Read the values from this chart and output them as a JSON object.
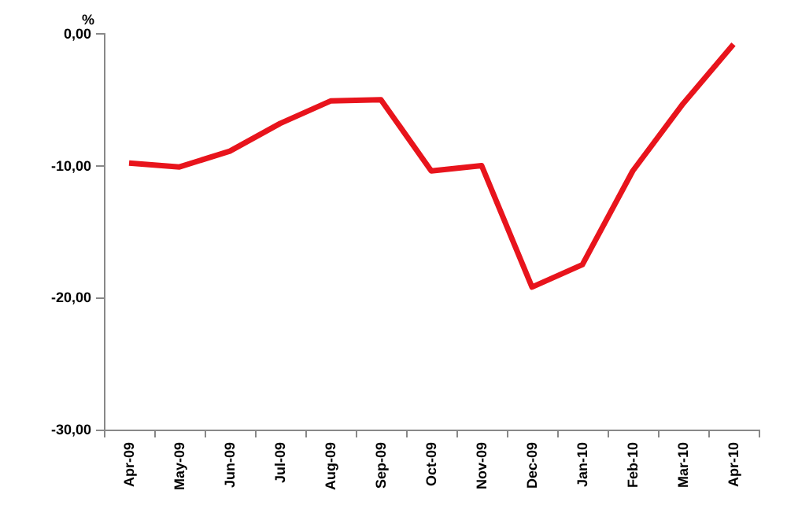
{
  "chart_data": {
    "type": "line",
    "ylabel": "%",
    "categories": [
      "Apr-09",
      "May-09",
      "Jun-09",
      "Jul-09",
      "Aug-09",
      "Sep-09",
      "Oct-09",
      "Nov-09",
      "Dec-09",
      "Jan-10",
      "Feb-10",
      "Mar-10",
      "Apr-10"
    ],
    "series": [
      {
        "color": "#e8141c",
        "values": [
          -9.8,
          -10.1,
          -8.9,
          -6.8,
          -5.1,
          -5.0,
          -10.4,
          -10.0,
          -19.2,
          -17.5,
          -10.4,
          -5.3,
          -0.8
        ]
      }
    ],
    "ylim": [
      -30,
      0
    ],
    "yticks": [
      {
        "value": -30,
        "label": "-30,00"
      },
      {
        "value": -20,
        "label": "-20,00"
      },
      {
        "value": -10,
        "label": "-10,00"
      },
      {
        "value": 0,
        "label": "0,00"
      }
    ],
    "grid": false,
    "marker": "none",
    "line_style": "solid"
  }
}
